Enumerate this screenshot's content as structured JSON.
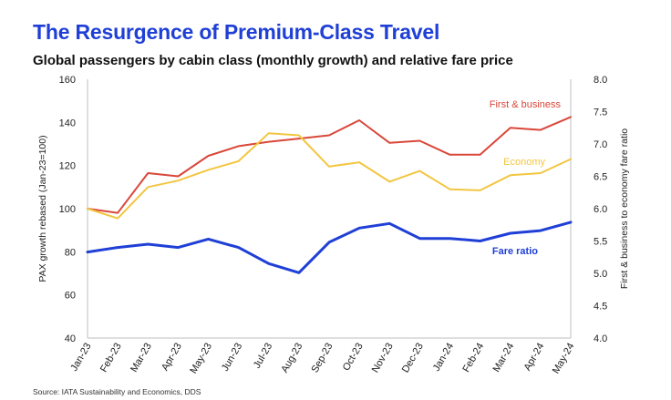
{
  "header": {
    "title": "The Resurgence of Premium-Class Travel",
    "subtitle": "Global passengers by cabin class (monthly growth) and relative fare price"
  },
  "footer": {
    "source": "Source: IATA Sustainability and Economics, DDS"
  },
  "chart_data": {
    "type": "line",
    "categories": [
      "Jan-23",
      "Feb-23",
      "Mar-23",
      "Apr-23",
      "May-23",
      "Jun-23",
      "Jul-23",
      "Aug-23",
      "Sep-23",
      "Oct-23",
      "Nov-23",
      "Dec-23",
      "Jan-24",
      "Feb-24",
      "Mar-24",
      "Apr-24",
      "May-24"
    ],
    "ylabel": "PAX growth rebased (Jan-23=100)",
    "ylim": [
      40,
      160
    ],
    "yticks": [
      "40",
      "60",
      "80",
      "100",
      "120",
      "140",
      "160"
    ],
    "y2label": "First & business to economy fare ratio",
    "y2lim": [
      4.0,
      8.0
    ],
    "y2ticks": [
      "4.0",
      "4.5",
      "5.0",
      "5.5",
      "6.0",
      "6.5",
      "7.0",
      "7.5",
      "8.0"
    ],
    "grid": false,
    "series": [
      {
        "name": "First & business",
        "axis": "left",
        "color": "#d9473a",
        "values": [
          100,
          98,
          116.5,
          115,
          124.5,
          129,
          131,
          132.5,
          134,
          141,
          130.5,
          131.5,
          125,
          125,
          137.5,
          136.5,
          142.5
        ]
      },
      {
        "name": "Economy",
        "axis": "left",
        "color": "#f2c641",
        "values": [
          100,
          95.5,
          110,
          113,
          118,
          122,
          135,
          134,
          119.5,
          121.5,
          112.5,
          117.5,
          109,
          108.5,
          115.5,
          116.5,
          123
        ]
      },
      {
        "name": "Fare ratio",
        "axis": "right",
        "color": "#1f3fd6",
        "values": [
          5.33,
          5.4,
          5.45,
          5.4,
          5.53,
          5.4,
          5.15,
          5.01,
          5.48,
          5.7,
          5.77,
          5.54,
          5.54,
          5.5,
          5.62,
          5.66,
          5.79
        ]
      }
    ]
  }
}
